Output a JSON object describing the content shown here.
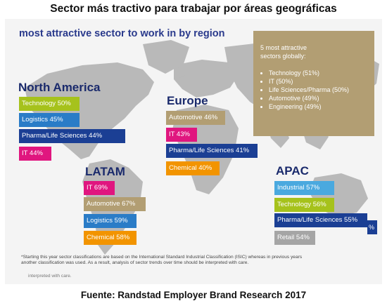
{
  "page_title": "Sector más tractivo para trabajar por áreas geográficas",
  "infographic": {
    "subtitle": "most attractive sector to work in by region",
    "global_box": {
      "title_line1": "5 most attractive",
      "title_line2": "sectors globally:",
      "items": [
        "Technology (51%)",
        "IT (50%)",
        "Life Sciences/Pharma (50%)",
        "Automotive (49%)",
        "Engineering (49%)"
      ]
    },
    "regions": {
      "north_america": {
        "name": "North America",
        "tags": [
          "Technology 50%",
          "Logistics 45%",
          "Pharma/Life Sciences 44%",
          "IT 44%"
        ]
      },
      "europe": {
        "name": "Europe",
        "tags": [
          "Automotive 46%",
          "IT 43%",
          "Pharma/Life Sciences 41%",
          "Chemical 40%"
        ]
      },
      "latam": {
        "name": "LATAM",
        "tags": [
          "IT 69%",
          "Automotive 67%",
          "Logistics 59%",
          "Chemical 58%"
        ]
      },
      "apac": {
        "name": "APAC",
        "tags": [
          "Industrial 57%",
          "Technology 56%",
          "Pharma/Life Sciences 55%",
          "Retail 54%"
        ],
        "extra": "%"
      }
    },
    "footnote": "*Starting this year sector classifications are based on the International Standard Industrial Classification (ISIC) whereas in previous years another classification was used. As a result, analysis of sector trends over time should be interpreted with care.",
    "footnote_ghost": "interpreted with care."
  },
  "source": "Fuente: Randstad Employer Brand Research 2017",
  "colors": {
    "technology": "#a6c21c",
    "logistics": "#2a7cc7",
    "pharma": "#1b3f94",
    "it": "#e0167f",
    "automotive": "#b29e73",
    "chemical": "#f29400",
    "industrial": "#4aa9df",
    "retail": "#a5a5a5",
    "region_text": "#1a2a6c"
  }
}
